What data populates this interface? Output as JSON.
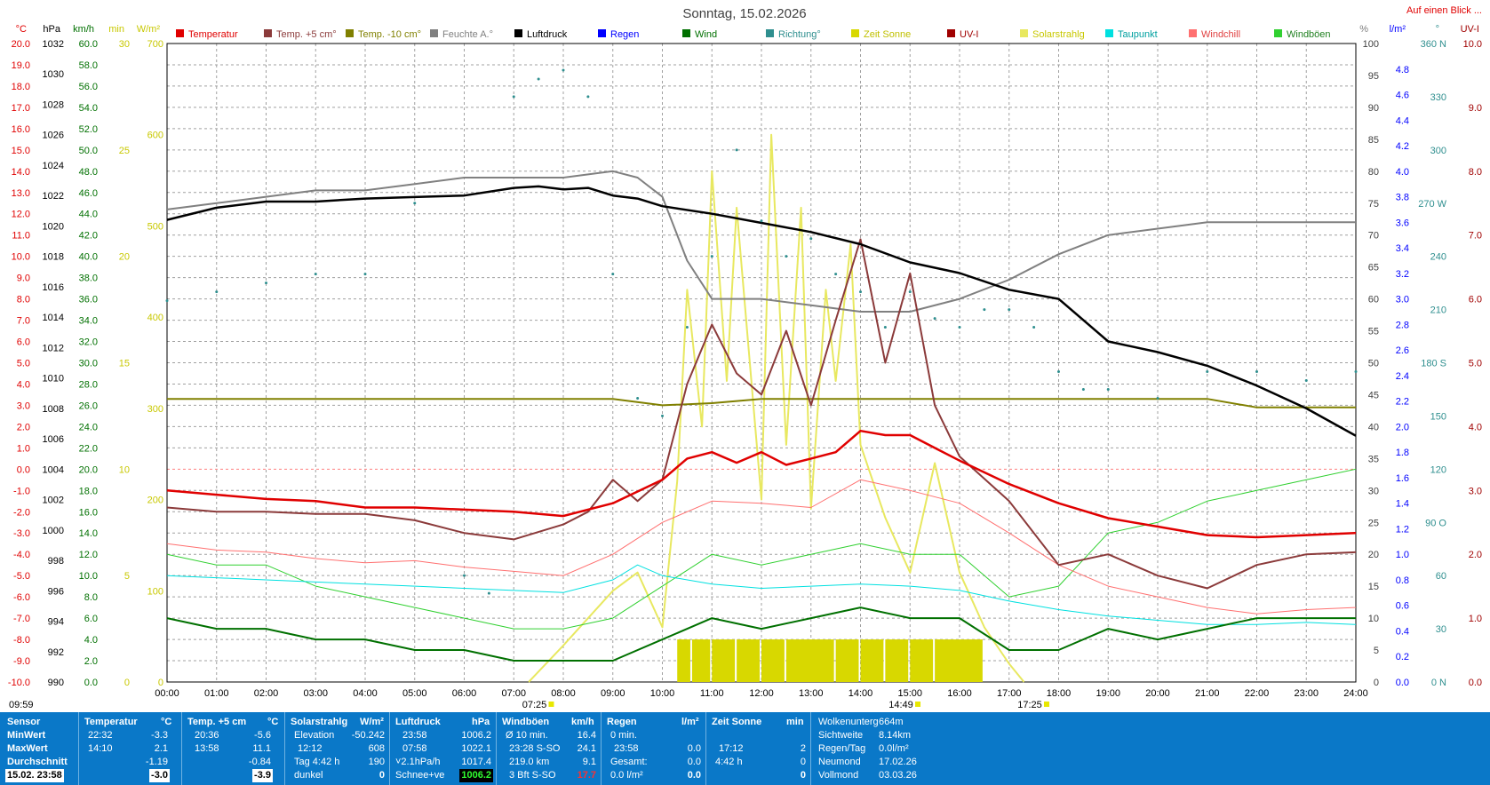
{
  "title": "Sonntag, 15.02.2026",
  "link_text": "Auf einen Blick ...",
  "footer_time": "09:59",
  "legend": [
    {
      "label": "Temperatur",
      "color": "#e00000"
    },
    {
      "label": "Temp. +5 cm°",
      "color": "#8b3a3a"
    },
    {
      "label": "Temp. -10 cm°",
      "color": "#808000"
    },
    {
      "label": "Feuchte A.°",
      "color": "#808080"
    },
    {
      "label": "Luftdruck",
      "color": "#000000"
    },
    {
      "label": "Regen",
      "color": "#0000ff"
    },
    {
      "label": "Wind",
      "color": "#007000"
    },
    {
      "label": "Richtung°",
      "color": "#2f8f8f"
    },
    {
      "label": "Zeit Sonne",
      "color": "#d8d800"
    },
    {
      "label": "UV-I",
      "color": "#a00000"
    },
    {
      "label": "Solarstrahlg",
      "color": "#e8e860"
    },
    {
      "label": "Taupunkt",
      "color": "#00e0e0"
    },
    {
      "label": "Windchill",
      "color": "#ff7070"
    },
    {
      "label": "Windböen",
      "color": "#30d030"
    }
  ],
  "axis_units": {
    "temp": "°C",
    "pressure": "hPa",
    "wind": "km/h",
    "sun_min": "min",
    "solar": "W/m²",
    "humidity": "%",
    "rain": "l/m²",
    "direction": "°",
    "uv": "UV-I"
  },
  "axes": {
    "temp": [
      "20.0",
      "19.0",
      "18.0",
      "17.0",
      "16.0",
      "15.0",
      "14.0",
      "13.0",
      "12.0",
      "11.0",
      "10.0",
      "9.0",
      "8.0",
      "7.0",
      "6.0",
      "5.0",
      "4.0",
      "3.0",
      "2.0",
      "1.0",
      "0.0",
      "-1.0",
      "-2.0",
      "-3.0",
      "-4.0",
      "-5.0",
      "-6.0",
      "-7.0",
      "-8.0",
      "-9.0",
      "-10.0"
    ],
    "pressure": [
      "1032",
      "1030",
      "1028",
      "1026",
      "1024",
      "1022",
      "1020",
      "1018",
      "1016",
      "1014",
      "1012",
      "1010",
      "1008",
      "1006",
      "1004",
      "1002",
      "1000",
      "998",
      "996",
      "994",
      "992",
      "990"
    ],
    "wind": [
      "60.0",
      "58.0",
      "56.0",
      "54.0",
      "52.0",
      "50.0",
      "48.0",
      "46.0",
      "44.0",
      "42.0",
      "40.0",
      "38.0",
      "36.0",
      "34.0",
      "32.0",
      "30.0",
      "28.0",
      "26.0",
      "24.0",
      "22.0",
      "20.0",
      "18.0",
      "16.0",
      "14.0",
      "12.0",
      "10.0",
      "8.0",
      "6.0",
      "4.0",
      "2.0",
      "0.0"
    ],
    "sun_min": [
      "30",
      "25",
      "20",
      "15",
      "10",
      "5",
      "0"
    ],
    "solar": [
      "700",
      "600",
      "500",
      "400",
      "300",
      "200",
      "100",
      "0"
    ],
    "humidity": [
      "100",
      "95",
      "90",
      "85",
      "80",
      "75",
      "70",
      "65",
      "60",
      "55",
      "50",
      "45",
      "40",
      "35",
      "30",
      "25",
      "20",
      "15",
      "10",
      "5",
      "0"
    ],
    "rain": [
      "4.8",
      "4.6",
      "4.4",
      "4.2",
      "4.0",
      "3.8",
      "3.6",
      "3.4",
      "3.2",
      "3.0",
      "2.8",
      "2.6",
      "2.4",
      "2.2",
      "2.0",
      "1.8",
      "1.6",
      "1.4",
      "1.2",
      "1.0",
      "0.8",
      "0.6",
      "0.4",
      "0.2",
      "0.0"
    ],
    "direction": [
      "360 N",
      "330",
      "300",
      "270 W",
      "240",
      "210",
      "180 S",
      "150",
      "120",
      "90 O",
      "60",
      "30",
      "0   N"
    ],
    "uv": [
      "10.0",
      "9.0",
      "8.0",
      "7.0",
      "6.0",
      "5.0",
      "4.0",
      "3.0",
      "2.0",
      "1.0",
      "0.0"
    ],
    "time": [
      "00:00",
      "01:00",
      "02:00",
      "03:00",
      "04:00",
      "05:00",
      "06:00",
      "07:00",
      "08:00",
      "09:00",
      "10:00",
      "11:00",
      "12:00",
      "13:00",
      "14:00",
      "15:00",
      "16:00",
      "17:00",
      "18:00",
      "19:00",
      "20:00",
      "21:00",
      "22:00",
      "23:00",
      "24:00"
    ]
  },
  "time_markers": {
    "sunrise": "07:25",
    "noon": "14:49",
    "sunset": "17:25"
  },
  "chart_data": {
    "type": "line",
    "title": "Sonntag, 15.02.2026",
    "x_unit": "hour of day",
    "xlim": [
      0,
      24
    ],
    "series": [
      {
        "name": "Luftdruck",
        "unit": "hPa",
        "ylim": [
          990,
          1032
        ],
        "color": "#000000",
        "x": [
          0,
          1,
          2,
          3,
          4,
          5,
          6,
          7,
          7.5,
          8,
          8.5,
          9,
          9.5,
          10,
          11,
          12,
          13,
          14,
          15,
          16,
          17,
          18,
          19,
          20,
          21,
          22,
          23,
          24
        ],
        "y": [
          1020.4,
          1021.2,
          1021.6,
          1021.6,
          1021.8,
          1021.9,
          1022.0,
          1022.5,
          1022.6,
          1022.4,
          1022.5,
          1022.0,
          1021.8,
          1021.3,
          1020.8,
          1020.2,
          1019.6,
          1018.8,
          1017.6,
          1016.9,
          1015.8,
          1015.2,
          1012.4,
          1011.7,
          1010.8,
          1009.5,
          1008.0,
          1006.2
        ]
      },
      {
        "name": "Temperatur",
        "unit": "°C",
        "ylim": [
          -10,
          20
        ],
        "color": "#e00000",
        "x": [
          0,
          1,
          2,
          3,
          4,
          5,
          6,
          7,
          8,
          9,
          10,
          10.5,
          11,
          11.5,
          12,
          12.5,
          13,
          13.5,
          14,
          14.5,
          15,
          15.5,
          16,
          17,
          18,
          19,
          20,
          21,
          22,
          23,
          24
        ],
        "y": [
          -1.0,
          -1.2,
          -1.4,
          -1.5,
          -1.8,
          -1.8,
          -1.9,
          -2.0,
          -2.2,
          -1.6,
          -0.5,
          0.5,
          0.8,
          0.3,
          0.8,
          0.2,
          0.5,
          0.8,
          1.8,
          1.6,
          1.6,
          1.0,
          0.4,
          -0.7,
          -1.6,
          -2.3,
          -2.7,
          -3.1,
          -3.2,
          -3.1,
          -3.0
        ]
      },
      {
        "name": "Temp. +5 cm°",
        "unit": "°C",
        "ylim": [
          -10,
          20
        ],
        "color": "#8b3a3a",
        "x": [
          0,
          1,
          2,
          3,
          4,
          5,
          6,
          7,
          8,
          8.5,
          9,
          9.5,
          10,
          10.5,
          11,
          11.5,
          12,
          12.5,
          13,
          13.5,
          14,
          14.5,
          15,
          15.5,
          16,
          17,
          18,
          19,
          20,
          21,
          22,
          23,
          24
        ],
        "y": [
          -1.8,
          -2.0,
          -2.0,
          -2.1,
          -2.1,
          -2.4,
          -3.0,
          -3.3,
          -2.6,
          -2.0,
          -0.5,
          -1.5,
          -0.5,
          4.0,
          6.8,
          4.5,
          3.5,
          6.5,
          3.0,
          7.0,
          10.8,
          5.0,
          9.2,
          3.0,
          0.6,
          -1.5,
          -4.5,
          -4.0,
          -5.0,
          -5.6,
          -4.5,
          -4.0,
          -3.9
        ]
      },
      {
        "name": "Temp. -10 cm°",
        "unit": "°C",
        "ylim": [
          -10,
          20
        ],
        "color": "#808000",
        "x": [
          0,
          9,
          10,
          11,
          12,
          13,
          14,
          15,
          16,
          17,
          18,
          19,
          20,
          21,
          22,
          23,
          24
        ],
        "y": [
          3.3,
          3.3,
          3.0,
          3.1,
          3.3,
          3.3,
          3.3,
          3.3,
          3.3,
          3.3,
          3.3,
          3.3,
          3.3,
          3.3,
          2.9,
          2.9,
          2.9
        ]
      },
      {
        "name": "Feuchte A.°",
        "unit": "%",
        "ylim": [
          0,
          100
        ],
        "color": "#808080",
        "x": [
          0,
          1,
          2,
          3,
          4,
          5,
          6,
          7,
          8,
          9,
          9.5,
          10,
          10.5,
          11,
          12,
          13,
          14,
          15,
          16,
          17,
          18,
          19,
          20,
          21,
          22,
          23,
          24
        ],
        "y": [
          74,
          75,
          76,
          77,
          77,
          78,
          79,
          79,
          79,
          80,
          79,
          76,
          66,
          60,
          60,
          59,
          58,
          58,
          60,
          63,
          67,
          70,
          71,
          72,
          72,
          72,
          72
        ]
      },
      {
        "name": "Taupunkt",
        "unit": "°C",
        "ylim": [
          -10,
          20
        ],
        "color": "#00e0e0",
        "x": [
          0,
          2,
          4,
          6,
          8,
          9,
          9.5,
          10,
          11,
          12,
          13,
          14,
          15,
          16,
          17,
          18,
          19,
          20,
          21,
          22,
          23,
          24
        ],
        "y": [
          -5.0,
          -5.2,
          -5.4,
          -5.6,
          -5.8,
          -5.2,
          -4.5,
          -5.0,
          -5.4,
          -5.6,
          -5.5,
          -5.4,
          -5.5,
          -5.7,
          -6.2,
          -6.6,
          -6.9,
          -7.1,
          -7.3,
          -7.3,
          -7.2,
          -7.3
        ]
      },
      {
        "name": "Solarstrahlg",
        "unit": "W/m²",
        "ylim": [
          0,
          700
        ],
        "color": "#e8e860",
        "x": [
          7.3,
          8,
          9,
          9.5,
          10,
          10.3,
          10.5,
          10.8,
          11,
          11.3,
          11.5,
          12,
          12.2,
          12.5,
          12.8,
          13,
          13.3,
          13.5,
          13.8,
          14,
          14.5,
          15,
          15.5,
          16,
          16.5,
          17,
          17.3
        ],
        "y": [
          0,
          40,
          100,
          120,
          60,
          220,
          430,
          280,
          560,
          330,
          520,
          200,
          600,
          260,
          520,
          190,
          430,
          330,
          480,
          260,
          180,
          120,
          240,
          120,
          60,
          20,
          0
        ]
      },
      {
        "name": "Wind",
        "unit": "km/h",
        "ylim": [
          0,
          60
        ],
        "color": "#007000",
        "x": [
          0,
          1,
          2,
          3,
          4,
          5,
          6,
          7,
          8,
          9,
          10,
          11,
          12,
          13,
          14,
          15,
          16,
          17,
          18,
          19,
          20,
          21,
          22,
          23,
          24
        ],
        "y": [
          6,
          5,
          5,
          4,
          4,
          3,
          3,
          2,
          2,
          2,
          4,
          6,
          5,
          6,
          7,
          6,
          6,
          3,
          3,
          5,
          4,
          5,
          6,
          6,
          6
        ]
      },
      {
        "name": "Windböen",
        "unit": "km/h",
        "ylim": [
          0,
          60
        ],
        "color": "#30d030",
        "x": [
          0,
          1,
          2,
          3,
          4,
          5,
          6,
          7,
          8,
          9,
          10,
          11,
          12,
          13,
          14,
          15,
          16,
          17,
          18,
          19,
          20,
          21,
          22,
          23,
          24
        ],
        "y": [
          12,
          11,
          11,
          9,
          8,
          7,
          6,
          5,
          5,
          6,
          9,
          12,
          11,
          12,
          13,
          12,
          12,
          8,
          9,
          14,
          15,
          17,
          18,
          19,
          20
        ]
      },
      {
        "name": "Windchill",
        "unit": "°C",
        "ylim": [
          -10,
          20
        ],
        "color": "#ff7070",
        "x": [
          0,
          1,
          2,
          3,
          4,
          5,
          6,
          7,
          8,
          9,
          10,
          11,
          12,
          13,
          14,
          15,
          16,
          17,
          18,
          19,
          20,
          21,
          22,
          23,
          24
        ],
        "y": [
          -3.5,
          -3.8,
          -3.9,
          -4.2,
          -4.4,
          -4.3,
          -4.6,
          -4.8,
          -5.0,
          -4.0,
          -2.5,
          -1.5,
          -1.6,
          -1.8,
          -0.5,
          -1.0,
          -1.6,
          -3.0,
          -4.5,
          -5.5,
          -6.0,
          -6.5,
          -6.8,
          -6.6,
          -6.5
        ]
      },
      {
        "name": "Richtung°",
        "unit": "°",
        "ylim": [
          0,
          360
        ],
        "color": "#2f8f8f",
        "x": [
          0,
          1,
          2,
          3,
          4,
          5,
          6,
          6.5,
          7,
          7.5,
          8,
          8.5,
          9,
          9.5,
          10,
          10.5,
          11,
          11.5,
          12,
          12.5,
          13,
          13.5,
          14,
          14.5,
          15,
          15.5,
          16,
          16.5,
          17,
          17.5,
          18,
          18.5,
          19,
          20,
          21,
          22,
          23,
          24
        ],
        "y": [
          215,
          220,
          225,
          230,
          230,
          270,
          60,
          50,
          330,
          340,
          345,
          330,
          230,
          160,
          150,
          200,
          240,
          300,
          260,
          240,
          250,
          230,
          220,
          200,
          220,
          205,
          200,
          210,
          210,
          200,
          175,
          165,
          165,
          160,
          175,
          175,
          170,
          175
        ]
      },
      {
        "name": "Zeit Sonne",
        "unit": "min",
        "ylim": [
          0,
          30
        ],
        "color": "#d8d800",
        "x": [
          10.3,
          10.6,
          11,
          11.5,
          12,
          12.5,
          13.5,
          14,
          14.5,
          15,
          15.5,
          16.5
        ],
        "y": [
          2,
          2,
          2,
          2,
          2,
          2,
          2,
          2,
          2,
          2,
          2,
          0
        ]
      }
    ]
  },
  "stats": {
    "sensor": {
      "header": "Sensor",
      "rows": [
        "MinWert",
        "MaxWert",
        "Durchschnitt",
        "15.02. 23:58"
      ]
    },
    "temperatur": {
      "header": "Temperatur",
      "unit": "°C",
      "rows": [
        [
          "22:32",
          "-3.3"
        ],
        [
          "14:10",
          "2.1"
        ],
        [
          "",
          "-1.19"
        ],
        [
          "",
          "-3.0"
        ]
      ]
    },
    "temp5": {
      "header": "Temp. +5 cm",
      "unit": "°C",
      "rows": [
        [
          "20:36",
          "-5.6"
        ],
        [
          "13:58",
          "11.1"
        ],
        [
          "",
          "-0.84"
        ],
        [
          "",
          "-3.9"
        ]
      ]
    },
    "solar": {
      "header": "Solarstrahlg",
      "unit": "W/m²",
      "rows": [
        [
          "Elevation",
          "-50.242"
        ],
        [
          "12:12",
          "608"
        ],
        [
          "Tag 4:42 h",
          "190"
        ],
        [
          "dunkel",
          "0"
        ]
      ]
    },
    "luftdruck": {
      "header": "Luftdruck",
      "unit": "hPa",
      "rows": [
        [
          "23:58",
          "1006.2"
        ],
        [
          "07:58",
          "1022.1"
        ],
        [
          "˅2.1hPa/h",
          "1017.4"
        ],
        [
          "Schnee+ve",
          "1006.2"
        ]
      ]
    },
    "windboen": {
      "header": "Windböen",
      "unit": "km/h",
      "rows": [
        [
          "Ø 10 min.",
          "16.4"
        ],
        [
          "23:28  S-SO",
          "24.1"
        ],
        [
          "219.0 km",
          "9.1"
        ],
        [
          "3 Bft S-SO",
          "17.7"
        ]
      ]
    },
    "regen": {
      "header": "Regen",
      "unit": "l/m²",
      "rows": [
        [
          "0 min.",
          ""
        ],
        [
          "23:58",
          "0.0"
        ],
        [
          "Gesamt:",
          "0.0"
        ],
        [
          "0.0 l/m²",
          "0.0"
        ]
      ]
    },
    "sonne": {
      "header": "Zeit Sonne",
      "unit": "min",
      "rows": [
        [
          "",
          ""
        ],
        [
          "17:12",
          "2"
        ],
        [
          "4:42 h",
          "0"
        ],
        [
          "",
          "0"
        ]
      ]
    },
    "info": {
      "rows": [
        [
          "Wolkenunterg",
          "664m"
        ],
        [
          "Sichtweite",
          "8.14km"
        ],
        [
          "Regen/Tag",
          "0.0l/m²"
        ],
        [
          "Neumond",
          "17.02.26"
        ],
        [
          "Vollmond",
          "03.03.26"
        ]
      ]
    }
  }
}
